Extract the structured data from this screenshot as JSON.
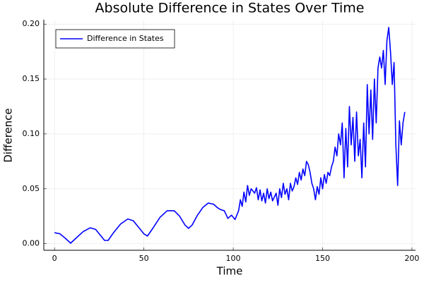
{
  "chart_data": {
    "type": "line",
    "title": "Absolute Difference in States Over Time",
    "xlabel": "Time",
    "ylabel": "Difference",
    "x": [
      0,
      3,
      6,
      9,
      12,
      16,
      20,
      23,
      26,
      28,
      30,
      33,
      37,
      41,
      44,
      47,
      50,
      52,
      55,
      59,
      63,
      67,
      70,
      73,
      75,
      77,
      80,
      83,
      86,
      89,
      91,
      93,
      95,
      97,
      99,
      101,
      103,
      104,
      105,
      106,
      107,
      108,
      109,
      110,
      112,
      113,
      114,
      115,
      116,
      117,
      118,
      119,
      120,
      121,
      122,
      124,
      125,
      126,
      127,
      128,
      129,
      130,
      131,
      132,
      133,
      134,
      135,
      136,
      137,
      138,
      139,
      140,
      141,
      142,
      143,
      144,
      145,
      146,
      147,
      148,
      149,
      150,
      151,
      152,
      153,
      154,
      155,
      156,
      157,
      158,
      159,
      160,
      161,
      162,
      163,
      164,
      165,
      166,
      167,
      168,
      169,
      170,
      171,
      172,
      173,
      174,
      175,
      176,
      177,
      178,
      179,
      180,
      181,
      182,
      183,
      184,
      185,
      186,
      187,
      188,
      189,
      190,
      191,
      192,
      193,
      194,
      195,
      196
    ],
    "series": [
      {
        "name": "Difference in States",
        "color": "#0000ff",
        "values": [
          0.01,
          0.009,
          0.005,
          0.0005,
          0.005,
          0.011,
          0.0145,
          0.013,
          0.007,
          0.003,
          0.003,
          0.01,
          0.018,
          0.0225,
          0.021,
          0.015,
          0.009,
          0.007,
          0.014,
          0.024,
          0.03,
          0.03,
          0.025,
          0.017,
          0.014,
          0.017,
          0.026,
          0.033,
          0.037,
          0.036,
          0.033,
          0.031,
          0.03,
          0.023,
          0.026,
          0.022,
          0.03,
          0.04,
          0.034,
          0.047,
          0.038,
          0.053,
          0.044,
          0.05,
          0.046,
          0.051,
          0.04,
          0.049,
          0.039,
          0.046,
          0.037,
          0.05,
          0.041,
          0.047,
          0.039,
          0.046,
          0.035,
          0.05,
          0.042,
          0.055,
          0.045,
          0.05,
          0.04,
          0.055,
          0.048,
          0.052,
          0.06,
          0.054,
          0.065,
          0.058,
          0.068,
          0.062,
          0.075,
          0.072,
          0.065,
          0.055,
          0.05,
          0.04,
          0.052,
          0.045,
          0.06,
          0.05,
          0.063,
          0.055,
          0.065,
          0.062,
          0.07,
          0.075,
          0.088,
          0.08,
          0.1,
          0.09,
          0.11,
          0.06,
          0.105,
          0.07,
          0.125,
          0.09,
          0.115,
          0.075,
          0.12,
          0.08,
          0.095,
          0.06,
          0.11,
          0.07,
          0.145,
          0.1,
          0.14,
          0.095,
          0.15,
          0.11,
          0.16,
          0.17,
          0.16,
          0.176,
          0.145,
          0.185,
          0.197,
          0.175,
          0.145,
          0.165,
          0.09,
          0.053,
          0.112,
          0.09,
          0.11,
          0.12
        ]
      }
    ],
    "xlim": [
      -6,
      202
    ],
    "ylim": [
      -0.006,
      0.204
    ],
    "xticks": [
      0,
      50,
      100,
      150,
      200
    ],
    "yticks": [
      {
        "value": 0,
        "label": "0.00"
      },
      {
        "value": 0.05,
        "label": "0.05"
      },
      {
        "value": 0.1,
        "label": "0.10"
      },
      {
        "value": 0.15,
        "label": "0.15"
      },
      {
        "value": 0.2,
        "label": "0.20"
      }
    ],
    "grid": true,
    "legend": "top-left"
  }
}
